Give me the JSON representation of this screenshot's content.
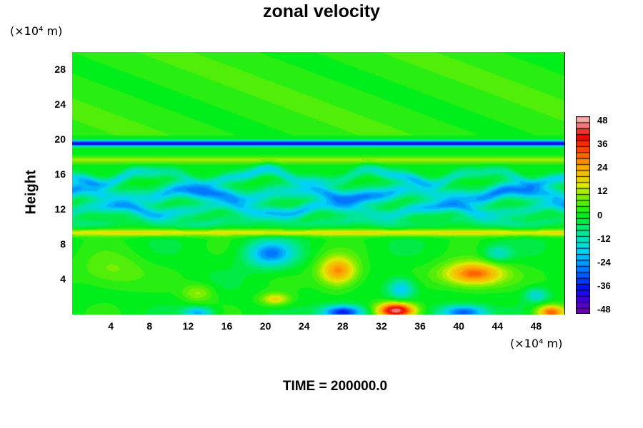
{
  "chart_data": {
    "type": "heatmap",
    "title": "zonal velocity",
    "ylabel": "Height",
    "xunit": "(×10⁴ m)",
    "yunit": "(×10⁴ m)",
    "xlim": [
      0,
      51
    ],
    "ylim": [
      0,
      30
    ],
    "x_ticks": [
      "4",
      "8",
      "12",
      "16",
      "20",
      "24",
      "28",
      "32",
      "36",
      "40",
      "44",
      "48"
    ],
    "y_ticks": [
      "4",
      "8",
      "12",
      "16",
      "20",
      "24",
      "28"
    ],
    "colorbar": {
      "range": [
        -50,
        50
      ],
      "ticks": [
        "48",
        "36",
        "24",
        "12",
        "0",
        "-12",
        "-24",
        "-36",
        "-48"
      ]
    },
    "features": [
      {
        "x": 33.5,
        "y": 0.5,
        "value": 48,
        "sx": 2.0,
        "sy": 0.9
      },
      {
        "x": 27.5,
        "y": 5.0,
        "value": 28,
        "sx": 2.0,
        "sy": 1.7
      },
      {
        "x": 41.5,
        "y": 4.7,
        "value": 32,
        "sx": 3.2,
        "sy": 1.4
      },
      {
        "x": 49.5,
        "y": 0.3,
        "value": 32,
        "sx": 1.5,
        "sy": 0.8
      },
      {
        "x": 20.5,
        "y": 7.0,
        "value": -26,
        "sx": 2.5,
        "sy": 1.5
      },
      {
        "x": 34.0,
        "y": 3.0,
        "value": -20,
        "sx": 1.4,
        "sy": 1.2
      },
      {
        "x": 28.0,
        "y": 0.3,
        "value": -38,
        "sx": 2.2,
        "sy": 0.8
      },
      {
        "x": 40.5,
        "y": 0.3,
        "value": -32,
        "sx": 2.4,
        "sy": 0.8
      },
      {
        "x": 13.0,
        "y": 0.3,
        "value": -22,
        "sx": 1.5,
        "sy": 0.6
      },
      {
        "x": 21.0,
        "y": 1.8,
        "value": 18,
        "sx": 1.5,
        "sy": 0.7
      },
      {
        "x": 4.0,
        "y": 5.0,
        "value": 9,
        "sx": 3.5,
        "sy": 2.0
      },
      {
        "x": 13.0,
        "y": 2.5,
        "value": 11,
        "sx": 1.6,
        "sy": 1.0
      },
      {
        "x": 48.0,
        "y": 2.3,
        "value": -16,
        "sx": 1.2,
        "sy": 0.8
      },
      {
        "x": 44.0,
        "y": 7.0,
        "value": -14,
        "sx": 1.5,
        "sy": 1.0
      }
    ],
    "bands": [
      {
        "y": 19.6,
        "value": -40,
        "w": 0.32
      },
      {
        "y": 17.7,
        "value": 11,
        "w": 0.4
      },
      {
        "y": 9.4,
        "value": 17,
        "w": 0.4
      },
      {
        "y": 13.8,
        "value": -27,
        "w": 0.9,
        "wave": 0.5
      },
      {
        "y": 12.0,
        "value": -21,
        "w": 0.7,
        "wave": 0.5
      },
      {
        "y": 15.8,
        "value": -18,
        "w": 0.6,
        "wave": 0.7
      },
      {
        "y": 10.6,
        "value": -8,
        "w": 0.7,
        "wave": 0.3
      }
    ]
  },
  "footer": "TIME = 200000.0"
}
